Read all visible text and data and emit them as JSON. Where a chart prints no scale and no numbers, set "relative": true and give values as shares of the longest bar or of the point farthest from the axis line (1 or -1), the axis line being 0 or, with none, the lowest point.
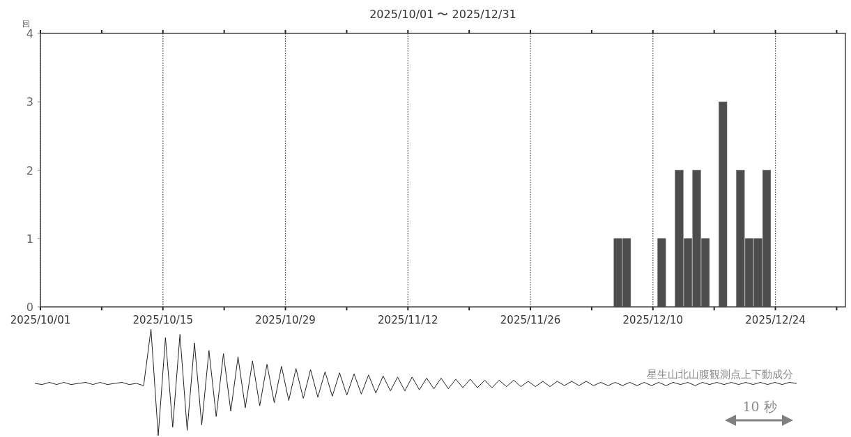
{
  "chart_data": [
    {
      "type": "bar",
      "title": "2025/10/01 〜 2025/12/31",
      "ylabel": "回",
      "x": [
        "2025-12-06",
        "2025-12-07",
        "2025-12-11",
        "2025-12-13",
        "2025-12-14",
        "2025-12-15",
        "2025-12-16",
        "2025-12-18",
        "2025-12-20",
        "2025-12-21",
        "2025-12-22",
        "2025-12-23"
      ],
      "values": [
        1,
        1,
        1,
        2,
        1,
        2,
        1,
        3,
        2,
        1,
        1,
        2
      ],
      "color": "#4d4d4d",
      "xlim": [
        "2025-10-01",
        "2026-01-01"
      ],
      "xticks": [
        {
          "value": "2025-10-01",
          "label": "2025/10/01"
        },
        {
          "value": "2025-10-08",
          "label": null
        },
        {
          "value": "2025-10-15",
          "label": "2025/10/15"
        },
        {
          "value": "2025-10-22",
          "label": null
        },
        {
          "value": "2025-10-29",
          "label": "2025/10/29"
        },
        {
          "value": "2025-11-05",
          "label": null
        },
        {
          "value": "2025-11-12",
          "label": "2025/11/12"
        },
        {
          "value": "2025-11-19",
          "label": null
        },
        {
          "value": "2025-11-26",
          "label": "2025/11/26"
        },
        {
          "value": "2025-12-03",
          "label": null
        },
        {
          "value": "2025-12-10",
          "label": "2025/12/10"
        },
        {
          "value": "2025-12-17",
          "label": null
        },
        {
          "value": "2025-12-24",
          "label": "2025/12/24"
        },
        {
          "value": "2025-12-31",
          "label": null
        }
      ],
      "ylim": [
        0,
        4
      ],
      "yticks": [
        0,
        1,
        2,
        3,
        4
      ],
      "grid": "x"
    },
    {
      "type": "line",
      "relative": true,
      "color": "#222222",
      "categories": [
        null,
        null,
        null,
        null,
        null,
        null,
        null,
        null,
        null,
        null,
        null,
        null,
        null,
        null,
        null,
        null,
        null,
        null,
        null,
        null,
        null,
        null,
        null,
        null,
        null,
        null,
        null,
        null,
        null,
        null,
        null,
        null,
        null,
        null,
        null,
        null,
        null,
        null,
        null,
        null,
        null,
        null,
        null,
        null,
        null,
        null,
        null,
        null,
        null,
        null,
        null,
        null,
        null,
        null,
        null,
        null,
        null,
        null,
        null,
        null,
        null,
        null,
        null,
        null,
        null,
        null,
        null,
        null,
        null,
        null,
        null,
        null,
        null,
        null,
        null,
        null,
        null,
        null,
        null,
        null,
        null,
        null,
        null,
        null,
        null,
        null,
        null,
        null,
        null,
        null,
        null,
        null,
        null,
        null,
        null,
        null,
        null,
        null,
        null,
        null,
        null,
        null,
        null,
        null,
        null,
        null
      ],
      "values": [
        0.49,
        0.48,
        0.5,
        0.48,
        0.5,
        0.48,
        0.49,
        0.5,
        0.48,
        0.5,
        0.48,
        0.49,
        0.5,
        0.48,
        0.49,
        0.47,
        1.0,
        0.0,
        0.92,
        0.08,
        0.95,
        0.05,
        0.87,
        0.1,
        0.8,
        0.18,
        0.77,
        0.23,
        0.74,
        0.26,
        0.7,
        0.28,
        0.67,
        0.31,
        0.65,
        0.33,
        0.63,
        0.35,
        0.62,
        0.36,
        0.6,
        0.37,
        0.59,
        0.38,
        0.58,
        0.39,
        0.57,
        0.4,
        0.56,
        0.42,
        0.55,
        0.42,
        0.55,
        0.43,
        0.54,
        0.44,
        0.54,
        0.44,
        0.53,
        0.45,
        0.53,
        0.45,
        0.52,
        0.45,
        0.52,
        0.46,
        0.52,
        0.46,
        0.51,
        0.46,
        0.51,
        0.46,
        0.51,
        0.47,
        0.51,
        0.47,
        0.51,
        0.47,
        0.5,
        0.47,
        0.5,
        0.47,
        0.5,
        0.47,
        0.5,
        0.47,
        0.5,
        0.47,
        0.5,
        0.48,
        0.5,
        0.47,
        0.5,
        0.48,
        0.5,
        0.48,
        0.5,
        0.48,
        0.5,
        0.48,
        0.5,
        0.48,
        0.5,
        0.48,
        0.5,
        0.49
      ],
      "annotations": [
        "星生山北山腹観測点上下動成分",
        "10 秒"
      ]
    }
  ]
}
